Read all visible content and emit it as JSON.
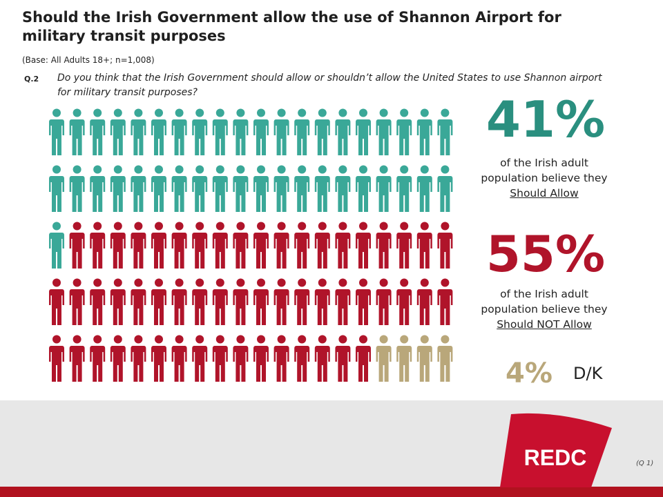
{
  "title": "Should the Irish Government allow the use of Shannon Airport for military transit purposes",
  "base": "(Base: All Adults 18+; n=1,008)",
  "question": {
    "number": "Q.2",
    "text": "Do you think that the Irish Government should allow or shouldn’t allow the United States to use Shannon airport for military transit purposes?"
  },
  "chart_data": {
    "type": "pictogram",
    "total_figures": 100,
    "grid": {
      "rows": 5,
      "columns": 20
    },
    "series": [
      {
        "name": "Should Allow",
        "value": 41,
        "unit": "%",
        "color": "#3aa898"
      },
      {
        "name": "Should NOT Allow",
        "value": 55,
        "unit": "%",
        "color": "#b0142a"
      },
      {
        "name": "D/K",
        "value": 4,
        "unit": "%",
        "color": "#b9a77a"
      }
    ]
  },
  "stats": {
    "allow": {
      "pct": "41%",
      "line1": "of the Irish adult",
      "line2": "population believe they",
      "label": "Should Allow"
    },
    "not_allow": {
      "pct": "55%",
      "line1": "of the Irish adult",
      "line2": "population believe they",
      "label": "Should NOT Allow"
    },
    "dk": {
      "pct": "4%",
      "label": "D/K"
    }
  },
  "footer": {
    "logo_text": "REDC",
    "page_ref": "(Q 1)"
  },
  "colors": {
    "teal": "#2a8f7f",
    "red": "#b0142a",
    "tan": "#b9a77a",
    "brand_red": "#c8102e"
  }
}
